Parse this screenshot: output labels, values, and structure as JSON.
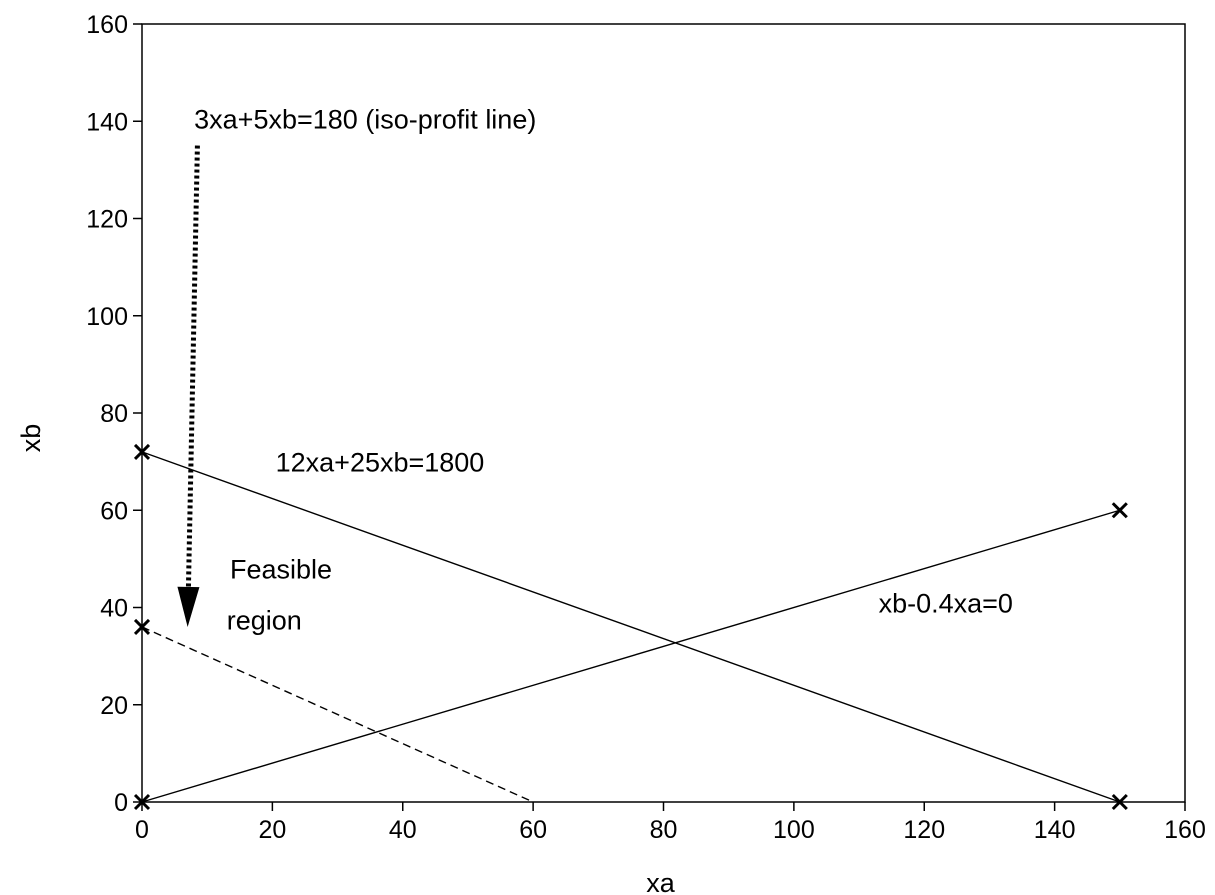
{
  "chart_data": {
    "type": "line",
    "title": "",
    "xlabel": "xa",
    "ylabel": "xb",
    "xlim": [
      0,
      160
    ],
    "ylim": [
      0,
      160
    ],
    "x_ticks": [
      0,
      20,
      40,
      60,
      80,
      100,
      120,
      140,
      160
    ],
    "y_ticks": [
      0,
      20,
      40,
      60,
      80,
      100,
      120,
      140,
      160
    ],
    "grid": false,
    "series": [
      {
        "name": "12xa+25xb=1800",
        "style": "solid",
        "marker": "x",
        "points": [
          [
            0,
            72
          ],
          [
            150,
            0
          ]
        ]
      },
      {
        "name": "xb-0.4xa=0",
        "style": "solid",
        "marker": "x",
        "points": [
          [
            0,
            0
          ],
          [
            150,
            60
          ]
        ]
      },
      {
        "name": "3xa+5xb=180 (iso-profit line)",
        "style": "dashed",
        "marker": "x-start",
        "points": [
          [
            0,
            36
          ],
          [
            60,
            0
          ]
        ]
      }
    ],
    "annotations": [
      {
        "id": "constraint1",
        "text": "12xa+25xb=1800",
        "x": 20.5,
        "y": 68
      },
      {
        "id": "constraint2",
        "text": "xb-0.4xa=0",
        "x": 113,
        "y": 39
      },
      {
        "id": "isoprofit",
        "text": "3xa+5xb=180 (iso-profit line)",
        "x": 8,
        "y": 138.5
      },
      {
        "id": "feasible1",
        "text": "Feasible",
        "x": 13.5,
        "y": 46
      },
      {
        "id": "feasible2",
        "text": "region",
        "x": 13,
        "y": 35.5
      }
    ],
    "arrow": {
      "style": "dotted",
      "from": [
        8.5,
        135
      ],
      "to": [
        7,
        36
      ]
    }
  }
}
